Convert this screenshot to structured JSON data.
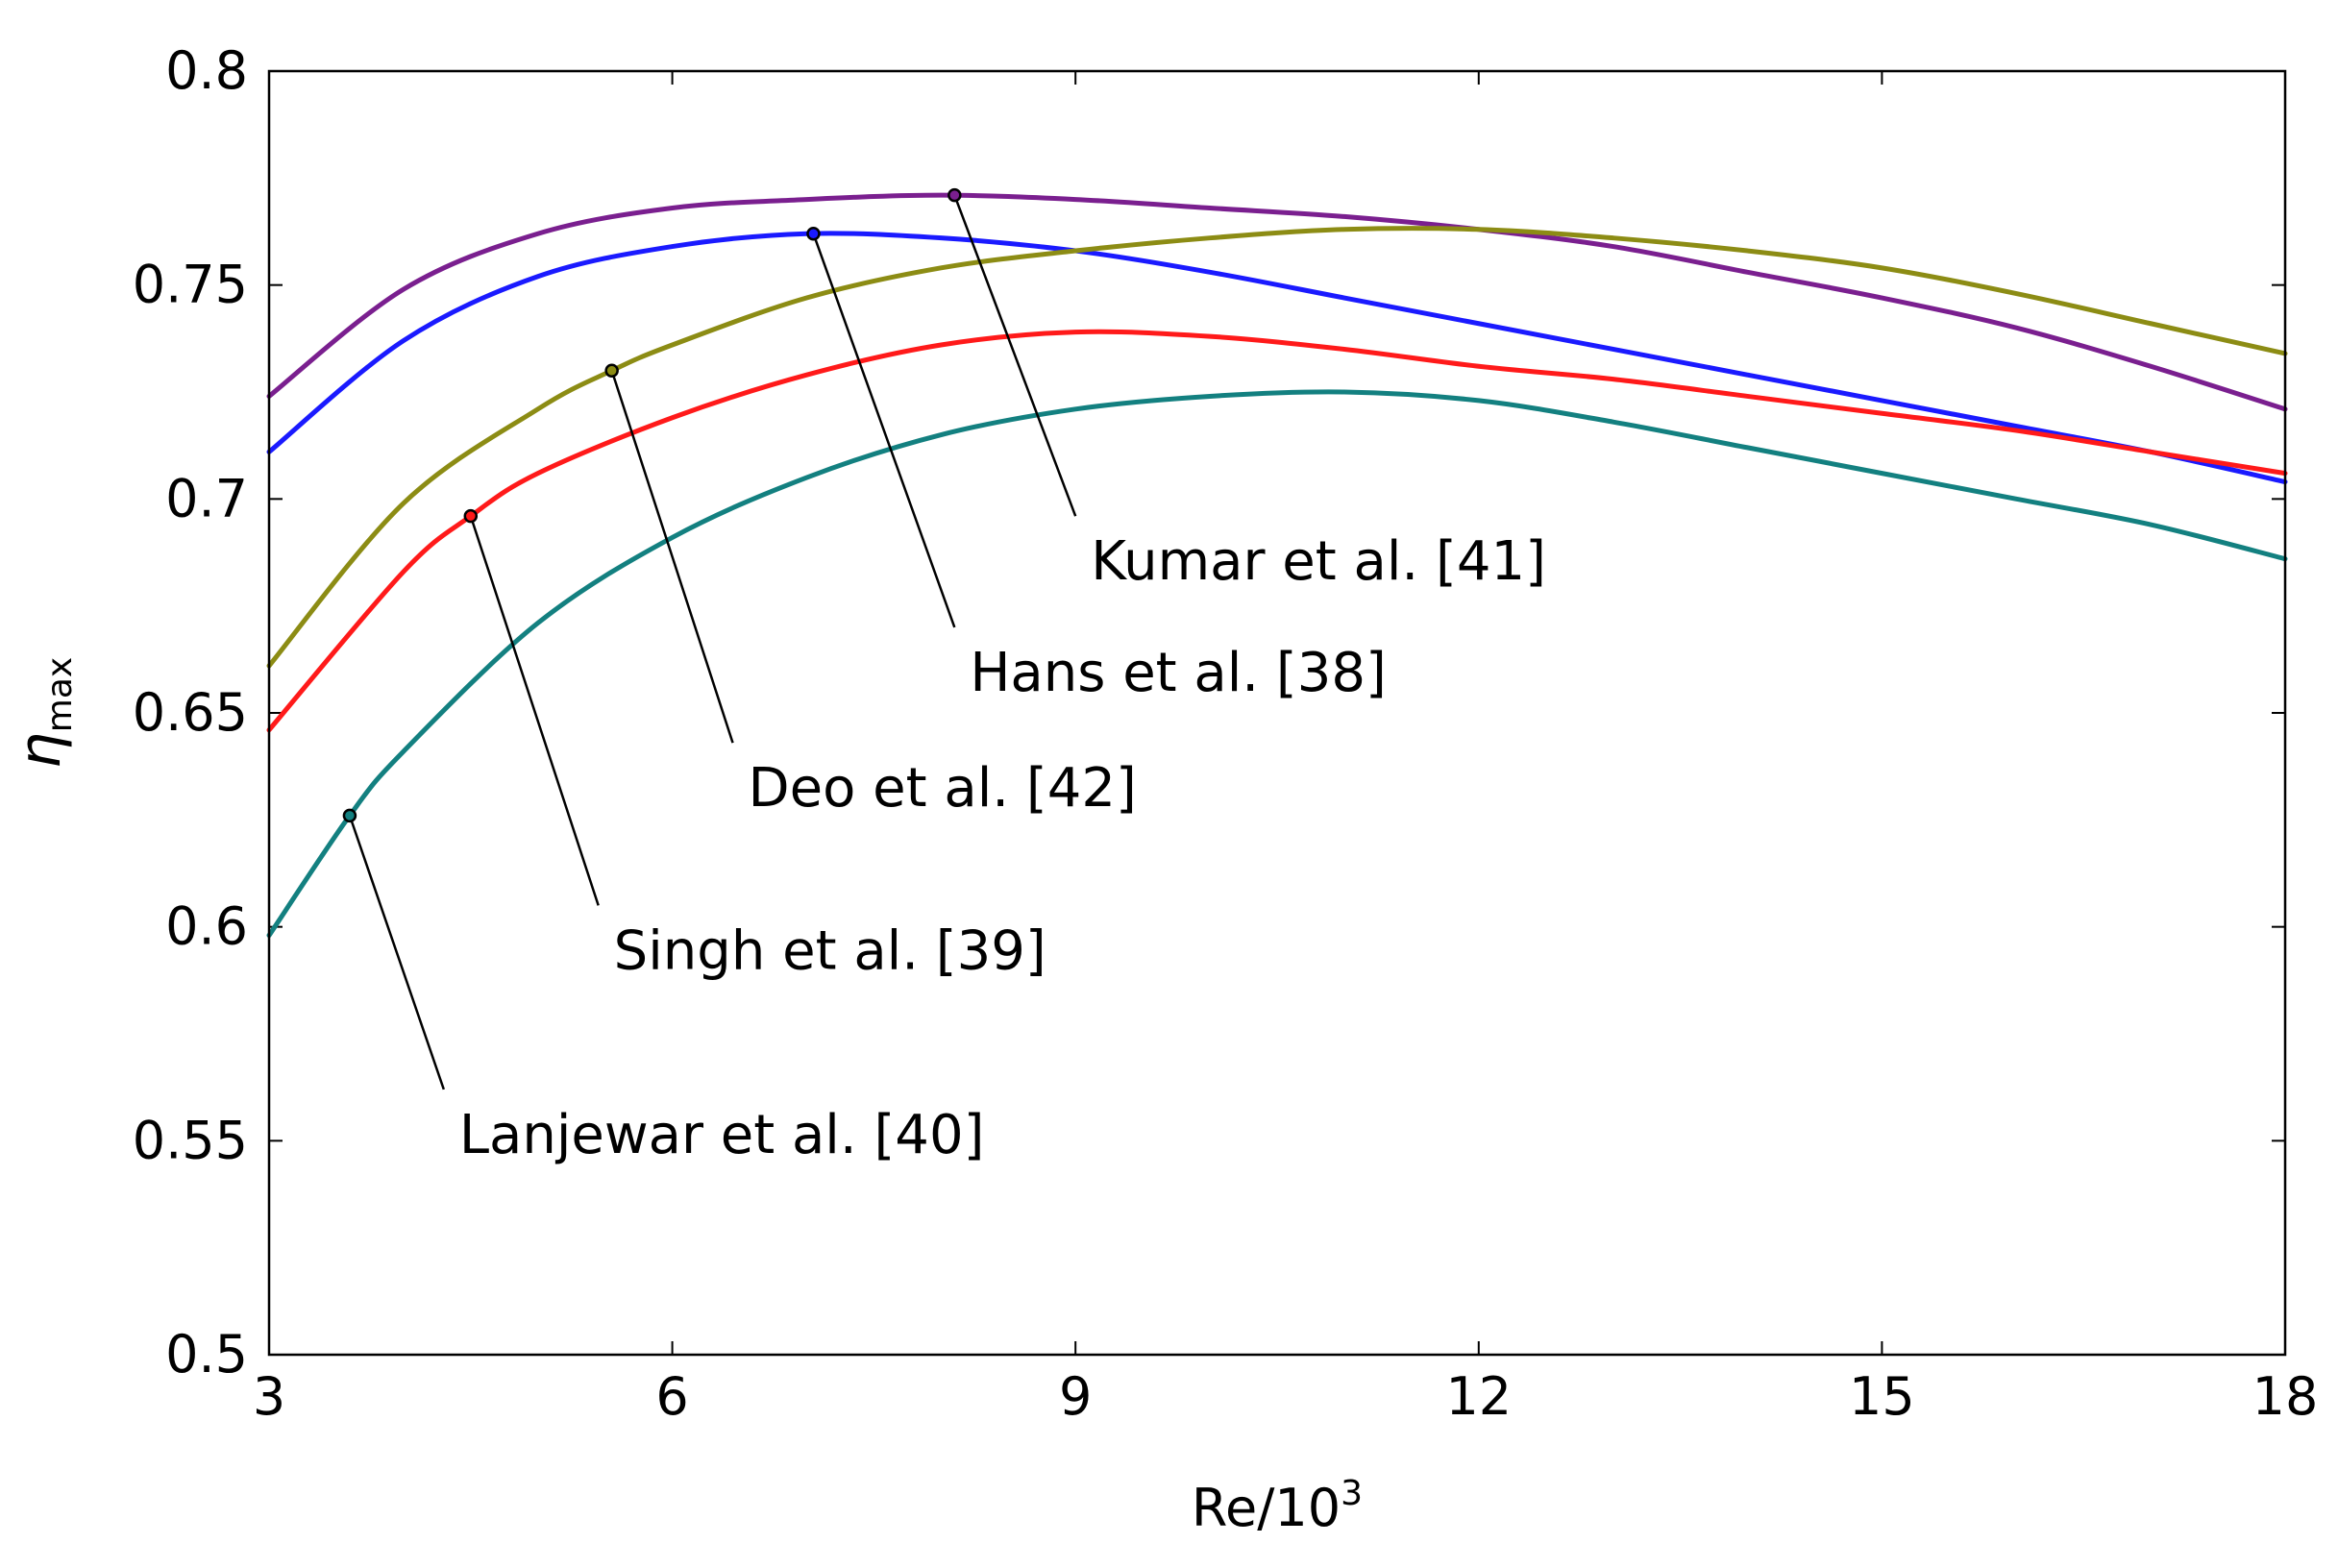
{
  "chart_data": {
    "type": "line",
    "title": "",
    "xlabel": "Re/10",
    "xlabel_sup": "3",
    "ylabel": "η",
    "ylabel_sub": "max",
    "xlim": [
      3,
      18
    ],
    "ylim": [
      0.5,
      0.8
    ],
    "xticks": [
      3,
      6,
      9,
      12,
      15,
      18
    ],
    "yticks": [
      0.5,
      0.55,
      0.6,
      0.65,
      0.7,
      0.75,
      0.8
    ],
    "ytick_labels": [
      "0.5",
      "0.55",
      "0.6",
      "0.65",
      "0.7",
      "0.75",
      "0.8"
    ],
    "grid": false,
    "legend": "none (inline annotations)",
    "series": [
      {
        "name": "Kumar et al. [41]",
        "color": "#7a1f8f",
        "x": [
          3,
          4,
          5,
          6,
          7,
          8,
          9,
          10,
          11,
          12,
          13,
          14,
          15,
          16,
          17,
          18
        ],
        "y": [
          0.724,
          0.749,
          0.762,
          0.768,
          0.77,
          0.771,
          0.77,
          0.768,
          0.766,
          0.763,
          0.759,
          0.753,
          0.747,
          0.74,
          0.731,
          0.721
        ],
        "marker_x": 8.1,
        "marker_y": 0.771,
        "label_anchor_x": 9.0,
        "label_anchor_y": 0.696
      },
      {
        "name": "Hans et al. [38]",
        "color": "#1a1aff",
        "x": [
          3,
          4,
          5,
          6,
          7,
          8,
          9,
          10,
          11,
          12,
          13,
          14,
          15,
          16,
          17,
          18
        ],
        "y": [
          0.711,
          0.737,
          0.752,
          0.759,
          0.762,
          0.761,
          0.758,
          0.753,
          0.747,
          0.741,
          0.735,
          0.729,
          0.723,
          0.717,
          0.711,
          0.704
        ],
        "marker_x": 7.05,
        "marker_y": 0.762,
        "label_anchor_x": 8.1,
        "label_anchor_y": 0.67
      },
      {
        "name": "Deo et al. [42]",
        "color": "#8c8c14",
        "x": [
          3,
          4,
          5,
          5.55,
          6,
          7,
          8,
          9,
          10,
          11,
          12,
          13,
          14,
          15,
          16,
          17,
          18
        ],
        "y": [
          0.661,
          0.699,
          0.721,
          0.73,
          0.736,
          0.747,
          0.754,
          0.758,
          0.761,
          0.763,
          0.763,
          0.761,
          0.758,
          0.754,
          0.748,
          0.741,
          0.734
        ],
        "marker_x": 5.55,
        "marker_y": 0.73,
        "label_anchor_x": 6.45,
        "label_anchor_y": 0.643
      },
      {
        "name": "Singh et al. [39]",
        "color": "#ff1a1a",
        "x": [
          3,
          4,
          4.5,
          5,
          6,
          7,
          8,
          9,
          10,
          11,
          12,
          13,
          14,
          15,
          16,
          17,
          18
        ],
        "y": [
          0.646,
          0.683,
          0.696,
          0.706,
          0.719,
          0.729,
          0.736,
          0.739,
          0.738,
          0.735,
          0.731,
          0.728,
          0.724,
          0.72,
          0.716,
          0.711,
          0.706
        ],
        "marker_x": 4.5,
        "marker_y": 0.696,
        "label_anchor_x": 5.45,
        "label_anchor_y": 0.605
      },
      {
        "name": "Lanjewar et al. [40]",
        "color": "#138080",
        "x": [
          3,
          3.6,
          4,
          5,
          6,
          7,
          8,
          9,
          10,
          11,
          12,
          13,
          14,
          15,
          16,
          17,
          18
        ],
        "y": [
          0.598,
          0.626,
          0.641,
          0.671,
          0.691,
          0.705,
          0.715,
          0.721,
          0.724,
          0.725,
          0.723,
          0.718,
          0.712,
          0.706,
          0.7,
          0.694,
          0.686
        ],
        "marker_x": 3.6,
        "marker_y": 0.626,
        "label_anchor_x": 4.3,
        "label_anchor_y": 0.562
      }
    ]
  }
}
